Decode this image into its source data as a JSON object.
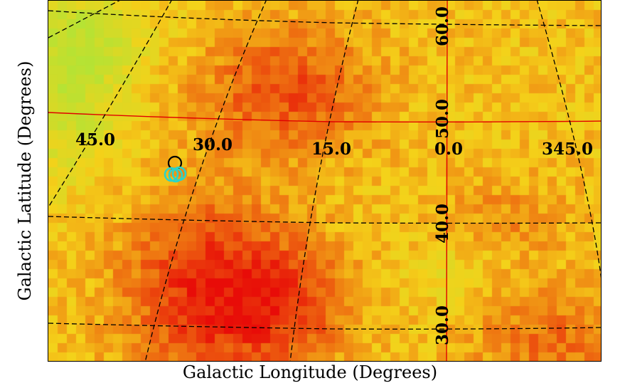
{
  "map": {
    "xlabel": "Galactic Longitude (Degrees)",
    "ylabel": "Galactic Latitude (Degrees)",
    "projection": "curved galactic coordinate grid",
    "colormap": {
      "low": "#b6e334",
      "mid": "#f5d21a",
      "high": "#e80c08"
    },
    "longitude_labels": [
      "45.0",
      "30.0",
      "15.0",
      "0.0",
      "345.0"
    ],
    "latitude_labels": [
      "60.0",
      "50.0",
      "40.0",
      "30.0"
    ],
    "grid_line_color": "#000000",
    "reference_line_color": "#e00000",
    "source_markers": [
      {
        "name": "black-circle",
        "color": "#000000",
        "count": 1
      },
      {
        "name": "cyan-circles",
        "color": "#2bd4c8",
        "count": 3
      }
    ]
  }
}
